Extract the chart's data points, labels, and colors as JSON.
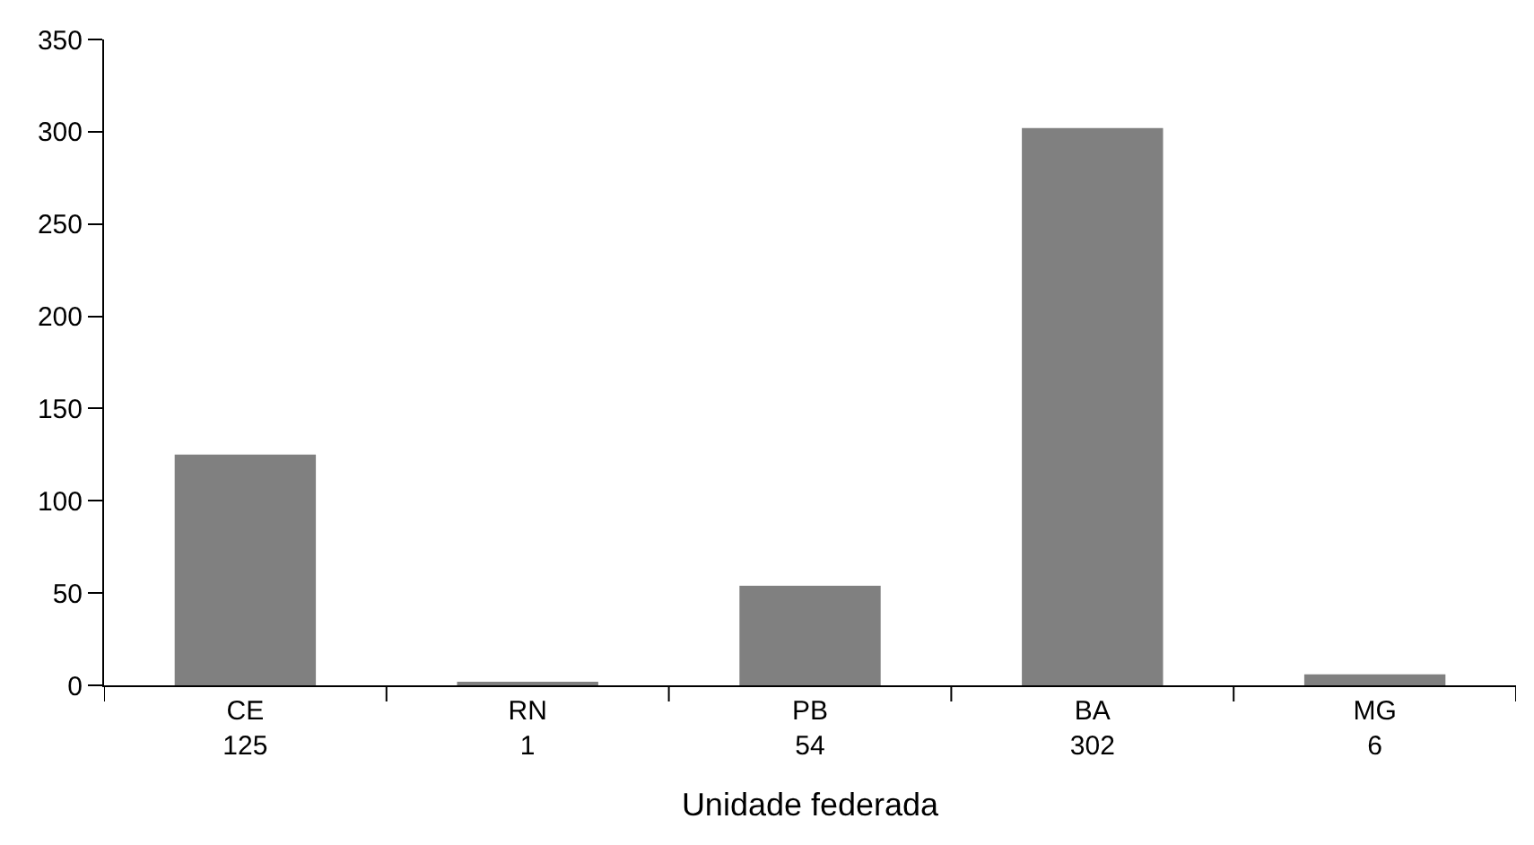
{
  "chart_data": {
    "type": "bar",
    "xlabel": "Unidade federada",
    "categories": [
      "CE",
      "RN",
      "PB",
      "BA",
      "MG"
    ],
    "values": [
      125,
      1,
      54,
      302,
      6
    ],
    "color": "#808080",
    "ylim": [
      0,
      350
    ],
    "yticks": [
      0,
      50,
      100,
      150,
      200,
      250,
      300,
      350
    ],
    "data_labels": true
  }
}
